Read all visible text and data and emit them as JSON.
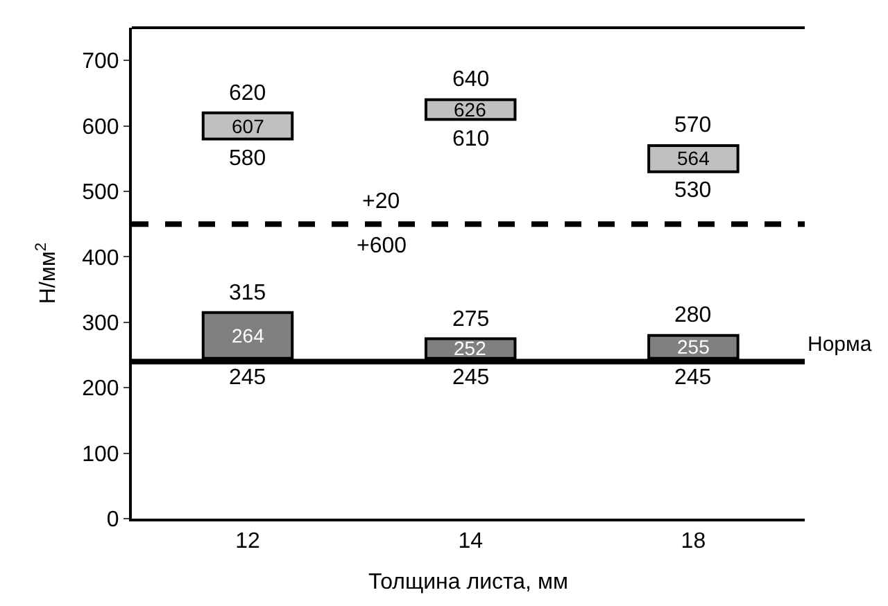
{
  "chart_data": {
    "type": "bar",
    "xlabel": "Толщина листа, мм",
    "ylabel": "Н/мм$^{2}$",
    "categories": [
      "12",
      "14",
      "18"
    ],
    "series": [
      {
        "color": "#c0c0c0",
        "base": [
          580,
          610,
          530
        ],
        "values": [
          40,
          30,
          40
        ]
      },
      {
        "color": "#808080",
        "base": [
          245,
          245,
          245
        ],
        "values": [
          70,
          30,
          35
        ]
      }
    ],
    "ylim": [
      0,
      750
    ],
    "yticks": [
      0,
      100,
      200,
      300,
      400,
      500,
      600,
      700
    ],
    "grid": false,
    "ref_lines": [
      {
        "axis": "y",
        "value": 450,
        "line_style": "dashed",
        "color": "#000000"
      },
      {
        "axis": "y",
        "value": 240,
        "line_style": "solid",
        "color": "#000000",
        "label": "Норма"
      }
    ],
    "annotations": [
      {
        "text": "620",
        "x": "12",
        "y": 620
      },
      {
        "text": "580",
        "x": "12",
        "y": 580
      },
      {
        "text": "640",
        "x": "14",
        "y": 640
      },
      {
        "text": "610",
        "x": "14",
        "y": 610
      },
      {
        "text": "570",
        "x": "18",
        "y": 570
      },
      {
        "text": "530",
        "x": "18",
        "y": 530
      },
      {
        "text": "315",
        "x": "12",
        "y": 315
      },
      {
        "text": "245",
        "x": "12",
        "y": 245
      },
      {
        "text": "275",
        "x": "14",
        "y": 275
      },
      {
        "text": "245",
        "x": "14",
        "y": 245
      },
      {
        "text": "280",
        "x": "18",
        "y": 280
      },
      {
        "text": "245",
        "x": "18",
        "y": 245
      },
      "607",
      "626",
      "564",
      "264",
      "252",
      "255",
      {
        "text": "+20",
        "y": 450
      },
      {
        "text": "+600",
        "y": 450
      }
    ]
  }
}
